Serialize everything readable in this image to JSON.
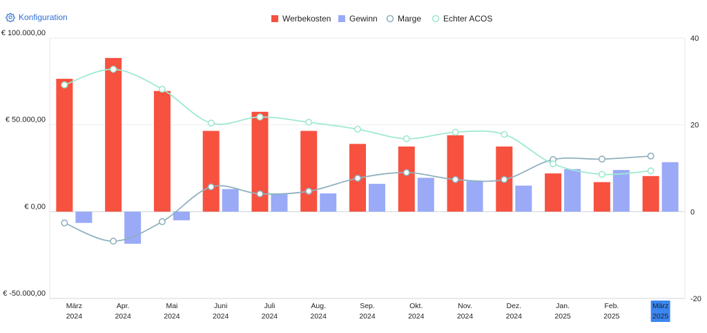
{
  "config_label": "Konfiguration",
  "icons": {
    "config": "gear-icon"
  },
  "chart_data": {
    "type": "bar",
    "categories": [
      [
        "März",
        "2024"
      ],
      [
        "Apr.",
        "2024"
      ],
      [
        "Mai",
        "2024"
      ],
      [
        "Juni",
        "2024"
      ],
      [
        "Juli",
        "2024"
      ],
      [
        "Aug.",
        "2024"
      ],
      [
        "Sep.",
        "2024"
      ],
      [
        "Okt.",
        "2024"
      ],
      [
        "Nov.",
        "2024"
      ],
      [
        "Dez.",
        "2024"
      ],
      [
        "Jan.",
        "2025"
      ],
      [
        "Feb.",
        "2025"
      ],
      [
        "März",
        "2025"
      ]
    ],
    "selected_category_index": 12,
    "series": [
      {
        "name": "Werbekosten",
        "type": "bar",
        "axis": "left",
        "color": "#f75140",
        "values": [
          76500,
          88500,
          69500,
          46500,
          57500,
          46500,
          39000,
          37500,
          44000,
          37500,
          22000,
          17000,
          20500
        ]
      },
      {
        "name": "Gewinn",
        "type": "bar",
        "axis": "left",
        "color": "#9aaaf7",
        "values": [
          -6500,
          -18500,
          -5000,
          13000,
          10500,
          10500,
          16000,
          19500,
          17500,
          15000,
          24500,
          24000,
          28500
        ]
      },
      {
        "name": "Marge",
        "type": "line",
        "axis": "right",
        "color": "#8fb1bf",
        "values": [
          -2.6,
          -6.8,
          -2.3,
          5.7,
          4.1,
          4.7,
          7.7,
          9.0,
          7.4,
          7.4,
          12.0,
          12.1,
          12.8
        ]
      },
      {
        "name": "Echter ACOS",
        "type": "line",
        "axis": "right",
        "color": "#9ee9d0",
        "values": [
          29.2,
          32.8,
          28.2,
          20.4,
          21.8,
          20.6,
          19.0,
          16.8,
          18.3,
          17.8,
          11.0,
          8.6,
          9.4
        ]
      }
    ],
    "y_left": {
      "min": -50000,
      "max": 100000,
      "ticks": [
        {
          "value": 100000,
          "label": "€ 100.000,00"
        },
        {
          "value": 50000,
          "label": "€ 50.000,00"
        },
        {
          "value": 0,
          "label": "€ 0,00"
        },
        {
          "value": -50000,
          "label": "€ -50.000,00"
        }
      ]
    },
    "y_right": {
      "min": -20,
      "max": 40,
      "ticks": [
        {
          "value": 40,
          "label": "40"
        },
        {
          "value": 20,
          "label": "20"
        },
        {
          "value": 0,
          "label": "0"
        },
        {
          "value": -20,
          "label": "-20"
        }
      ]
    },
    "grid": true,
    "legend_position": "top-center"
  }
}
